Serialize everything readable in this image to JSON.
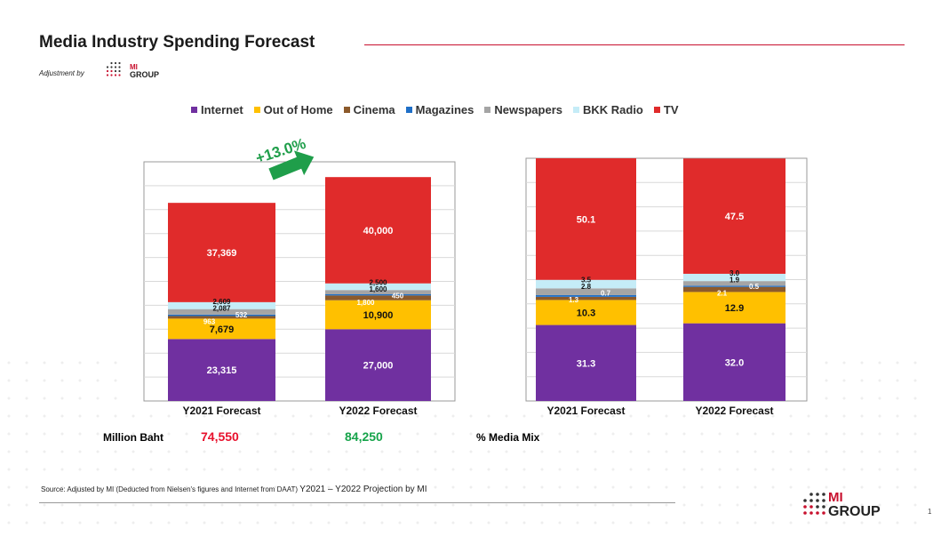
{
  "title": "Media Industry Spending Forecast",
  "adjustment_label": "Adjustment by",
  "logo": {
    "line1": "MI",
    "line2": "GROUP"
  },
  "growth_label": "+13.0%",
  "colors": {
    "accent_red": "#c8102e",
    "Internet": "#7030a0",
    "Out of Home": "#ffc000",
    "Cinema": "#8c5a2b",
    "Magazines": "#1f6fc7",
    "Newspapers": "#a5a5a5",
    "BKK Radio": "#c5ecf7",
    "TV": "#e02b2b",
    "arrow": "#1f9e4a",
    "total_2021": "#e8112d",
    "total_2022": "#17a44b"
  },
  "legend": [
    "Internet",
    "Out of Home",
    "Cinema",
    "Magazines",
    "Newspapers",
    "BKK Radio",
    "TV"
  ],
  "summary": {
    "million_baht_label": "Million Baht",
    "total_2021": "74,550",
    "total_2022": "84,250",
    "media_mix_label": "% Media Mix"
  },
  "source": {
    "text": "Source: Adjusted by MI (Deducted  from Nielsen's figures and Internet from DAAT)",
    "projection": "Y2021 – Y2022 Projection by MI"
  },
  "page_number": "1",
  "chart_data": [
    {
      "type": "bar",
      "stacked": true,
      "unit": "Million Baht",
      "categories": [
        "Y2021 Forecast",
        "Y2022 Forecast"
      ],
      "ylim": [
        0,
        90000
      ],
      "grid": true,
      "legend_position": "top",
      "series": [
        {
          "name": "Internet",
          "values": [
            23315,
            27000
          ],
          "labels": [
            "23,315",
            "27,000"
          ]
        },
        {
          "name": "Out of Home",
          "values": [
            7679,
            10900
          ],
          "labels": [
            "7,679",
            "10,900"
          ]
        },
        {
          "name": "Cinema",
          "values": [
            963,
            1800
          ],
          "labels": [
            "963",
            "1,800"
          ]
        },
        {
          "name": "Magazines",
          "values": [
            532,
            450
          ],
          "labels": [
            "532",
            "450"
          ]
        },
        {
          "name": "Newspapers",
          "values": [
            2087,
            1600
          ],
          "labels": [
            "2,087",
            "1,600"
          ]
        },
        {
          "name": "BKK Radio",
          "values": [
            2609,
            2500
          ],
          "labels": [
            "2,609",
            "2,500"
          ]
        },
        {
          "name": "TV",
          "values": [
            37369,
            40000
          ],
          "labels": [
            "37,369",
            "40,000"
          ]
        }
      ]
    },
    {
      "type": "bar",
      "stacked": true,
      "unit": "%",
      "categories": [
        "Y2021 Forecast",
        "Y2022 Forecast"
      ],
      "ylim": [
        0,
        100
      ],
      "grid": true,
      "series": [
        {
          "name": "Internet",
          "values": [
            31.3,
            32.0
          ],
          "labels": [
            "31.3",
            "32.0"
          ]
        },
        {
          "name": "Out of Home",
          "values": [
            10.3,
            12.9
          ],
          "labels": [
            "10.3",
            "12.9"
          ]
        },
        {
          "name": "Cinema",
          "values": [
            1.3,
            2.1
          ],
          "labels": [
            "1.3",
            "2.1"
          ]
        },
        {
          "name": "Magazines",
          "values": [
            0.7,
            0.5
          ],
          "labels": [
            "0.7",
            "0.5"
          ]
        },
        {
          "name": "Newspapers",
          "values": [
            2.8,
            1.9
          ],
          "labels": [
            "2.8",
            "1.9"
          ]
        },
        {
          "name": "BKK Radio",
          "values": [
            3.5,
            3.0
          ],
          "labels": [
            "3.5",
            "3.0"
          ]
        },
        {
          "name": "TV",
          "values": [
            50.1,
            47.5
          ],
          "labels": [
            "50.1",
            "47.5"
          ]
        }
      ]
    }
  ]
}
